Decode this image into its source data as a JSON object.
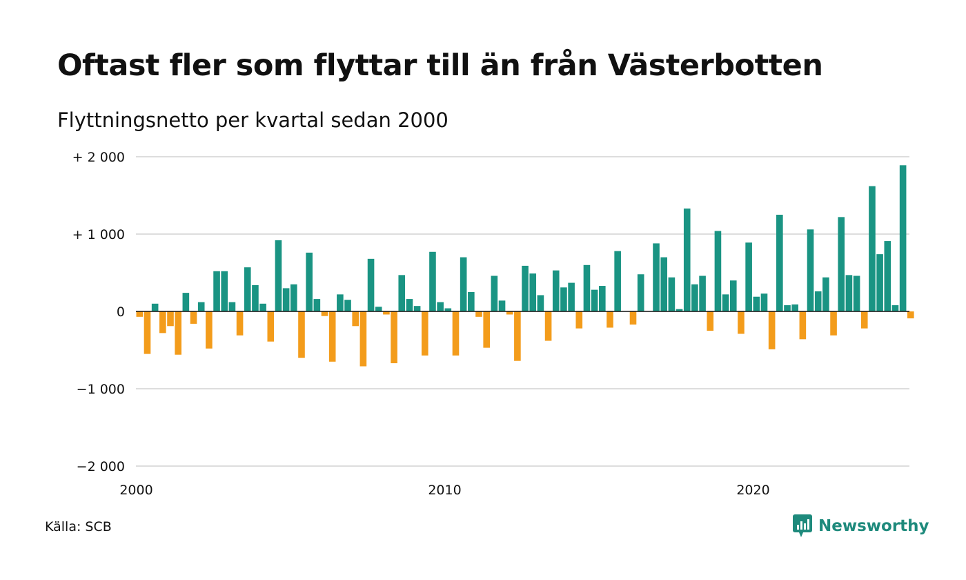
{
  "title": "Oftast fler som flyttar till än från Västerbotten",
  "subtitle": "Flyttningsnetto per kvartal sedan 2000",
  "source": "Källa: SCB",
  "brand": "Newsworthy",
  "colors": {
    "positive": "#1a9483",
    "negative": "#f39c1b",
    "grid": "#dddddd",
    "brand": "#1e8a7c"
  },
  "chart_data": {
    "type": "bar",
    "x_start": "2000 Q1",
    "frequency": "quarterly",
    "ylim": [
      -2000,
      2000
    ],
    "y_ticks": [
      {
        "value": 2000,
        "label": "+ 2 000"
      },
      {
        "value": 1000,
        "label": "+ 1 000"
      },
      {
        "value": 0,
        "label": "0"
      },
      {
        "value": -1000,
        "label": "−1 000"
      },
      {
        "value": -2000,
        "label": "−2 000"
      }
    ],
    "x_ticks": [
      {
        "year": 2000,
        "label": "2000"
      },
      {
        "year": 2010,
        "label": "2010"
      },
      {
        "year": 2020,
        "label": "2020"
      }
    ],
    "grid": true,
    "values": [
      -70,
      -550,
      100,
      -280,
      -190,
      -560,
      240,
      -160,
      120,
      -480,
      520,
      520,
      120,
      -310,
      570,
      340,
      100,
      -390,
      920,
      300,
      350,
      -600,
      760,
      160,
      -60,
      -650,
      220,
      150,
      -190,
      -710,
      680,
      60,
      -40,
      -670,
      470,
      160,
      70,
      -570,
      770,
      120,
      40,
      -570,
      700,
      250,
      -70,
      -470,
      460,
      140,
      -40,
      -640,
      590,
      490,
      210,
      -380,
      530,
      310,
      370,
      -220,
      600,
      280,
      330,
      -210,
      780,
      0,
      -170,
      480,
      0,
      880,
      700,
      440,
      30,
      1330,
      350,
      460,
      -250,
      1040,
      220,
      400,
      -290,
      890,
      190,
      230,
      -490,
      1250,
      80,
      90,
      -360,
      1060,
      260,
      440,
      -310,
      1220,
      470,
      460,
      -220,
      1620,
      740,
      910,
      80,
      1890,
      -90
    ]
  }
}
